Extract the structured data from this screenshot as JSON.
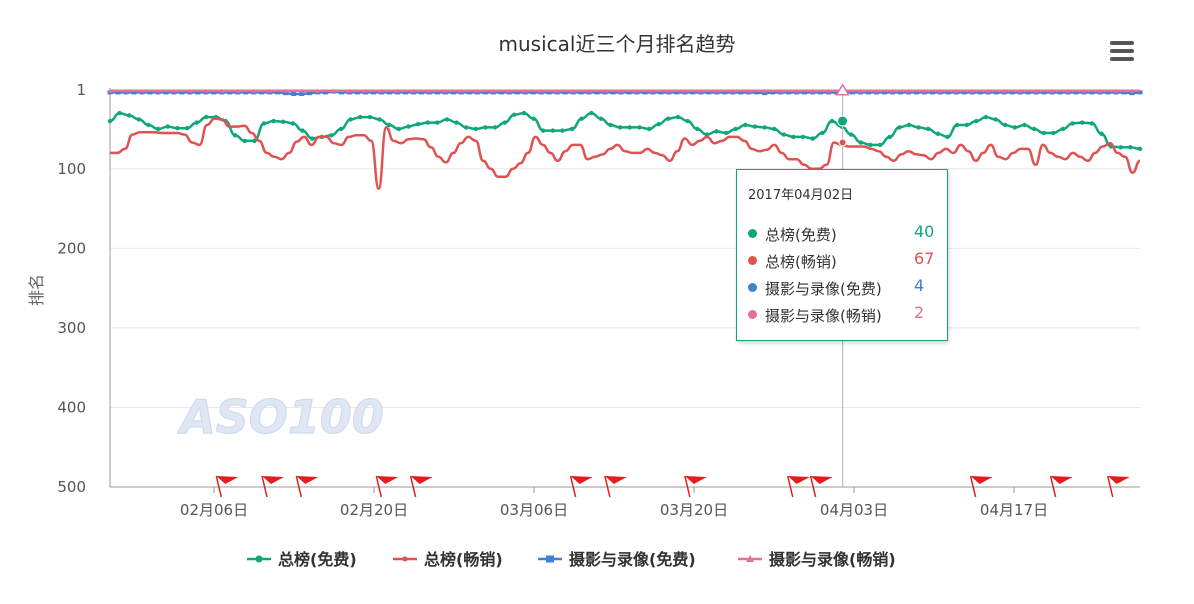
{
  "chart_data": {
    "type": "line",
    "title": "musical近三个月排名趋势",
    "ylabel": "排名",
    "xlabel": "",
    "y_reversed": true,
    "ylim": [
      1,
      500
    ],
    "y_ticks": [
      1,
      100,
      200,
      300,
      400,
      500
    ],
    "y_tick_labels": [
      "1",
      "100",
      "200",
      "300",
      "400",
      "500"
    ],
    "x_ticks": [
      "02月06日",
      "02月20日",
      "03月06日",
      "03月20日",
      "04月03日",
      "04月17日"
    ],
    "x_start": "2017-01-27",
    "grid": "horizontal",
    "legend_position": "bottom",
    "series": [
      {
        "name": "总榜(免费)",
        "color": "#0fa67a",
        "marker": "circle",
        "values": [
          40,
          30,
          33,
          38,
          45,
          50,
          47,
          49,
          49,
          42,
          35,
          35,
          40,
          58,
          65,
          65,
          43,
          40,
          41,
          43,
          52,
          62,
          60,
          58,
          50,
          38,
          35,
          35,
          38,
          45,
          50,
          47,
          44,
          42,
          42,
          38,
          42,
          48,
          50,
          48,
          48,
          42,
          32,
          30,
          37,
          52,
          52,
          52,
          50,
          37,
          30,
          37,
          45,
          48,
          48,
          48,
          50,
          44,
          37,
          35,
          40,
          50,
          57,
          53,
          55,
          50,
          45,
          47,
          48,
          50,
          57,
          60,
          60,
          62,
          55,
          40,
          47,
          57,
          67,
          70,
          70,
          60,
          48,
          45,
          48,
          50,
          56,
          60,
          45,
          45,
          40,
          35,
          38,
          45,
          48,
          45,
          50,
          55,
          55,
          50,
          43,
          42,
          43,
          56,
          72,
          73,
          73,
          75
        ]
      },
      {
        "name": "总榜(畅销)",
        "color": "#e05252",
        "marker": "none",
        "values": [
          80,
          80,
          75,
          57,
          54,
          54,
          54,
          55,
          55,
          55,
          57,
          67,
          70,
          45,
          37,
          38,
          47,
          47,
          46,
          55,
          65,
          80,
          85,
          88,
          80,
          66,
          60,
          70,
          60,
          60,
          68,
          70,
          60,
          58,
          58,
          65,
          125,
          48,
          65,
          68,
          63,
          62,
          63,
          73,
          85,
          92,
          80,
          68,
          60,
          65,
          90,
          100,
          110,
          110,
          100,
          93,
          80,
          60,
          70,
          80,
          90,
          78,
          70,
          70,
          88,
          85,
          82,
          75,
          70,
          78,
          80,
          80,
          75,
          80,
          83,
          90,
          78,
          62,
          70,
          65,
          60,
          68,
          65,
          60,
          60,
          65,
          75,
          78,
          76,
          70,
          80,
          88,
          88,
          95,
          100,
          100,
          95,
          67,
          70,
          72,
          72,
          72,
          75,
          78,
          85,
          90,
          82,
          78,
          82,
          83,
          88,
          80,
          75,
          80,
          70,
          78,
          90,
          80,
          70,
          85,
          88,
          80,
          75,
          75,
          95,
          70,
          80,
          85,
          88,
          80,
          85,
          90,
          80,
          72,
          68,
          80,
          85,
          105,
          90
        ]
      },
      {
        "name": "摄影与录像(免费)",
        "color": "#3f7fd4",
        "marker": "square",
        "values": [
          4,
          4,
          4,
          4,
          4,
          4,
          4,
          4,
          4,
          4,
          4,
          4,
          4,
          4,
          4,
          4,
          4,
          4,
          4,
          4,
          4,
          4,
          5,
          6,
          6,
          5,
          4,
          4,
          3,
          4,
          4,
          4,
          4,
          4,
          4,
          4,
          4,
          4,
          4,
          4,
          4,
          4,
          4,
          4,
          4,
          4,
          4,
          4,
          4,
          4,
          4,
          4,
          4,
          4,
          4,
          4,
          4,
          4,
          4,
          4,
          4,
          4,
          4,
          4,
          4,
          4,
          4,
          4,
          4,
          4,
          4,
          4,
          4,
          4,
          4,
          4,
          4,
          4,
          4,
          4,
          4,
          4,
          5,
          4,
          4,
          4,
          4,
          4,
          4,
          4,
          4,
          4,
          4,
          4,
          4,
          4,
          4,
          4,
          4,
          4,
          4,
          4,
          4,
          4,
          4,
          4,
          4,
          4,
          4,
          4,
          4,
          4,
          4,
          4,
          4,
          4,
          4,
          4,
          4,
          4,
          4,
          4,
          4,
          4,
          4,
          4,
          4,
          4,
          5,
          4
        ]
      },
      {
        "name": "摄影与录像(畅销)",
        "color": "#e0719b",
        "marker": "triangle",
        "values": [
          2,
          2,
          2,
          2,
          2,
          2,
          2,
          2,
          2,
          2,
          2,
          2,
          2,
          2,
          2,
          2,
          2,
          2,
          2,
          2,
          2,
          2,
          2,
          2,
          2,
          2,
          2,
          2,
          2,
          2,
          2,
          2,
          2,
          2,
          2,
          2,
          2,
          2,
          2,
          2,
          2,
          2,
          2,
          2,
          2,
          2,
          2,
          2,
          2,
          2,
          2,
          2,
          2,
          2,
          2,
          2,
          2,
          2,
          2,
          2,
          2,
          2,
          2,
          2,
          2,
          2,
          2,
          2,
          2,
          2,
          2,
          2,
          2,
          2,
          2,
          2,
          2,
          2,
          2,
          2,
          2,
          2,
          2,
          2,
          2,
          2,
          2,
          2,
          2,
          2,
          2,
          2,
          2,
          2,
          2,
          2,
          2,
          2,
          2,
          2,
          2,
          2,
          2,
          2,
          2,
          2,
          2,
          2,
          2,
          2,
          2,
          2,
          2,
          2,
          2,
          2,
          2,
          2,
          2,
          2,
          2,
          2,
          2,
          2,
          2,
          2,
          2,
          2,
          2,
          2
        ]
      }
    ],
    "watermark": "ASO100",
    "flags_color": "#e01e1e",
    "tooltip": {
      "date": "2017年04月02日",
      "rows": [
        {
          "name": "总榜(免费)",
          "value": "40",
          "color": "#0fa67a"
        },
        {
          "name": "总榜(畅销)",
          "value": "67",
          "color": "#e05252"
        },
        {
          "name": "摄影与录像(免费)",
          "value": "4",
          "color": "#3f7fd4"
        },
        {
          "name": "摄影与录像(畅销)",
          "value": "2",
          "color": "#e0719b"
        }
      ]
    }
  },
  "menu_icon": "hamburger-menu-icon"
}
